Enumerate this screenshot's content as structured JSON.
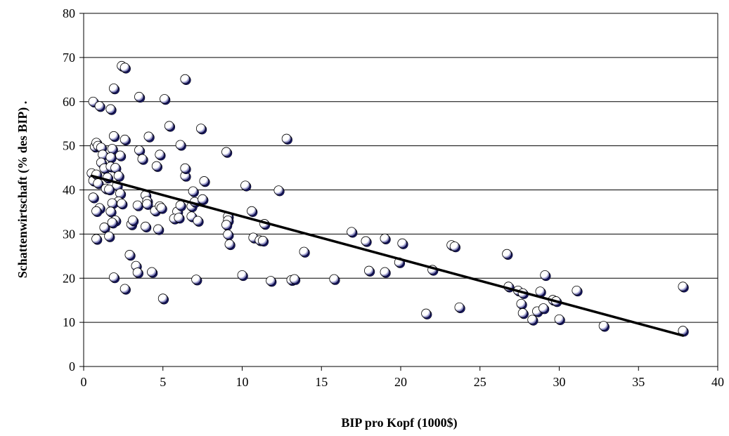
{
  "chart_data": {
    "type": "scatter",
    "xlabel": "BIP pro Kopf (1000$)",
    "ylabel": "Schattenwirtschaft (% des BIP) .",
    "xlim": [
      0,
      40
    ],
    "ylim": [
      0,
      80
    ],
    "xticks": [
      "0",
      "5",
      "10",
      "15",
      "20",
      "25",
      "30",
      "35",
      "40"
    ],
    "yticks": [
      "0",
      "10",
      "20",
      "30",
      "40",
      "50",
      "60",
      "70",
      "80"
    ],
    "grid": "horizontal",
    "legend": "none",
    "trendline": {
      "x": [
        0.5,
        37.8
      ],
      "y": [
        43.2,
        7.0
      ]
    },
    "colors": {
      "marker_fill": "#ffffff",
      "marker_shade": "#1a1a80",
      "trendline": "#000000",
      "grid": "#000000"
    },
    "points": [
      [
        0.6,
        60.0
      ],
      [
        1.0,
        59.0
      ],
      [
        1.7,
        58.3
      ],
      [
        2.4,
        68.1
      ],
      [
        2.6,
        67.7
      ],
      [
        1.9,
        63.0
      ],
      [
        3.5,
        61.1
      ],
      [
        5.1,
        60.6
      ],
      [
        6.4,
        65.1
      ],
      [
        0.7,
        49.8
      ],
      [
        0.8,
        50.7
      ],
      [
        0.9,
        50.0
      ],
      [
        1.1,
        49.6
      ],
      [
        1.8,
        49.3
      ],
      [
        1.9,
        52.2
      ],
      [
        2.6,
        51.4
      ],
      [
        1.2,
        48.0
      ],
      [
        2.3,
        47.8
      ],
      [
        1.7,
        47.4
      ],
      [
        3.5,
        49.0
      ],
      [
        3.7,
        47.0
      ],
      [
        4.1,
        52.1
      ],
      [
        4.8,
        48.0
      ],
      [
        5.4,
        54.5
      ],
      [
        4.6,
        45.4
      ],
      [
        6.1,
        50.2
      ],
      [
        7.4,
        53.9
      ],
      [
        0.5,
        43.8
      ],
      [
        0.6,
        42.1
      ],
      [
        0.8,
        43.5
      ],
      [
        0.9,
        41.5
      ],
      [
        1.1,
        46.2
      ],
      [
        1.3,
        44.9
      ],
      [
        1.5,
        42.8
      ],
      [
        1.4,
        40.3
      ],
      [
        1.7,
        45.3
      ],
      [
        2.0,
        45.0
      ],
      [
        2.2,
        43.2
      ],
      [
        2.1,
        41.0
      ],
      [
        2.3,
        39.2
      ],
      [
        2.2,
        37.4
      ],
      [
        1.8,
        37.0
      ],
      [
        0.6,
        38.3
      ],
      [
        1.6,
        40.1
      ],
      [
        1.0,
        35.9
      ],
      [
        0.8,
        35.2
      ],
      [
        1.7,
        35.1
      ],
      [
        2.0,
        33.1
      ],
      [
        1.8,
        32.6
      ],
      [
        1.3,
        31.5
      ],
      [
        1.6,
        29.5
      ],
      [
        0.8,
        28.9
      ],
      [
        2.4,
        36.9
      ],
      [
        3.4,
        36.5
      ],
      [
        3.9,
        38.8
      ],
      [
        4.0,
        37.5
      ],
      [
        4.0,
        36.8
      ],
      [
        4.5,
        35.3
      ],
      [
        4.8,
        36.3
      ],
      [
        4.9,
        35.9
      ],
      [
        5.9,
        35.1
      ],
      [
        6.1,
        36.5
      ],
      [
        6.8,
        36.3
      ],
      [
        7.0,
        37.3
      ],
      [
        6.9,
        39.7
      ],
      [
        7.5,
        37.9
      ],
      [
        7.6,
        42.0
      ],
      [
        6.4,
        43.2
      ],
      [
        6.4,
        44.9
      ],
      [
        5.7,
        33.5
      ],
      [
        6.0,
        33.7
      ],
      [
        6.8,
        34.0
      ],
      [
        7.2,
        33.0
      ],
      [
        3.9,
        31.7
      ],
      [
        4.7,
        31.1
      ],
      [
        2.9,
        25.3
      ],
      [
        3.0,
        32.2
      ],
      [
        3.1,
        33.1
      ],
      [
        3.3,
        22.8
      ],
      [
        3.4,
        21.3
      ],
      [
        4.3,
        21.4
      ],
      [
        1.9,
        20.2
      ],
      [
        2.6,
        17.6
      ],
      [
        5.0,
        15.4
      ],
      [
        7.1,
        19.7
      ],
      [
        9.0,
        48.6
      ],
      [
        10.2,
        41.0
      ],
      [
        12.3,
        39.9
      ],
      [
        12.8,
        51.6
      ],
      [
        9.1,
        34.0
      ],
      [
        9.1,
        33.1
      ],
      [
        9.0,
        32.1
      ],
      [
        9.1,
        29.9
      ],
      [
        9.2,
        27.7
      ],
      [
        10.6,
        35.2
      ],
      [
        10.7,
        29.2
      ],
      [
        11.1,
        28.6
      ],
      [
        11.3,
        28.5
      ],
      [
        11.4,
        32.3
      ],
      [
        10.0,
        20.7
      ],
      [
        11.8,
        19.4
      ],
      [
        13.1,
        19.6
      ],
      [
        13.3,
        19.8
      ],
      [
        13.9,
        26.0
      ],
      [
        15.8,
        19.8
      ],
      [
        16.9,
        30.5
      ],
      [
        17.8,
        28.4
      ],
      [
        18.0,
        21.7
      ],
      [
        19.0,
        29.0
      ],
      [
        19.0,
        21.4
      ],
      [
        19.9,
        23.6
      ],
      [
        20.1,
        27.9
      ],
      [
        21.6,
        12.0
      ],
      [
        22.0,
        21.9
      ],
      [
        23.2,
        27.5
      ],
      [
        23.4,
        27.2
      ],
      [
        23.7,
        13.4
      ],
      [
        26.7,
        25.5
      ],
      [
        26.8,
        18.1
      ],
      [
        27.4,
        17.2
      ],
      [
        27.7,
        16.6
      ],
      [
        27.6,
        14.2
      ],
      [
        27.7,
        12.1
      ],
      [
        28.3,
        10.6
      ],
      [
        28.6,
        12.5
      ],
      [
        28.8,
        17.0
      ],
      [
        29.0,
        13.2
      ],
      [
        29.1,
        20.7
      ],
      [
        29.6,
        15.1
      ],
      [
        29.8,
        14.8
      ],
      [
        30.0,
        10.7
      ],
      [
        31.1,
        17.2
      ],
      [
        32.8,
        9.2
      ],
      [
        37.8,
        18.1
      ],
      [
        37.8,
        8.1
      ]
    ]
  }
}
